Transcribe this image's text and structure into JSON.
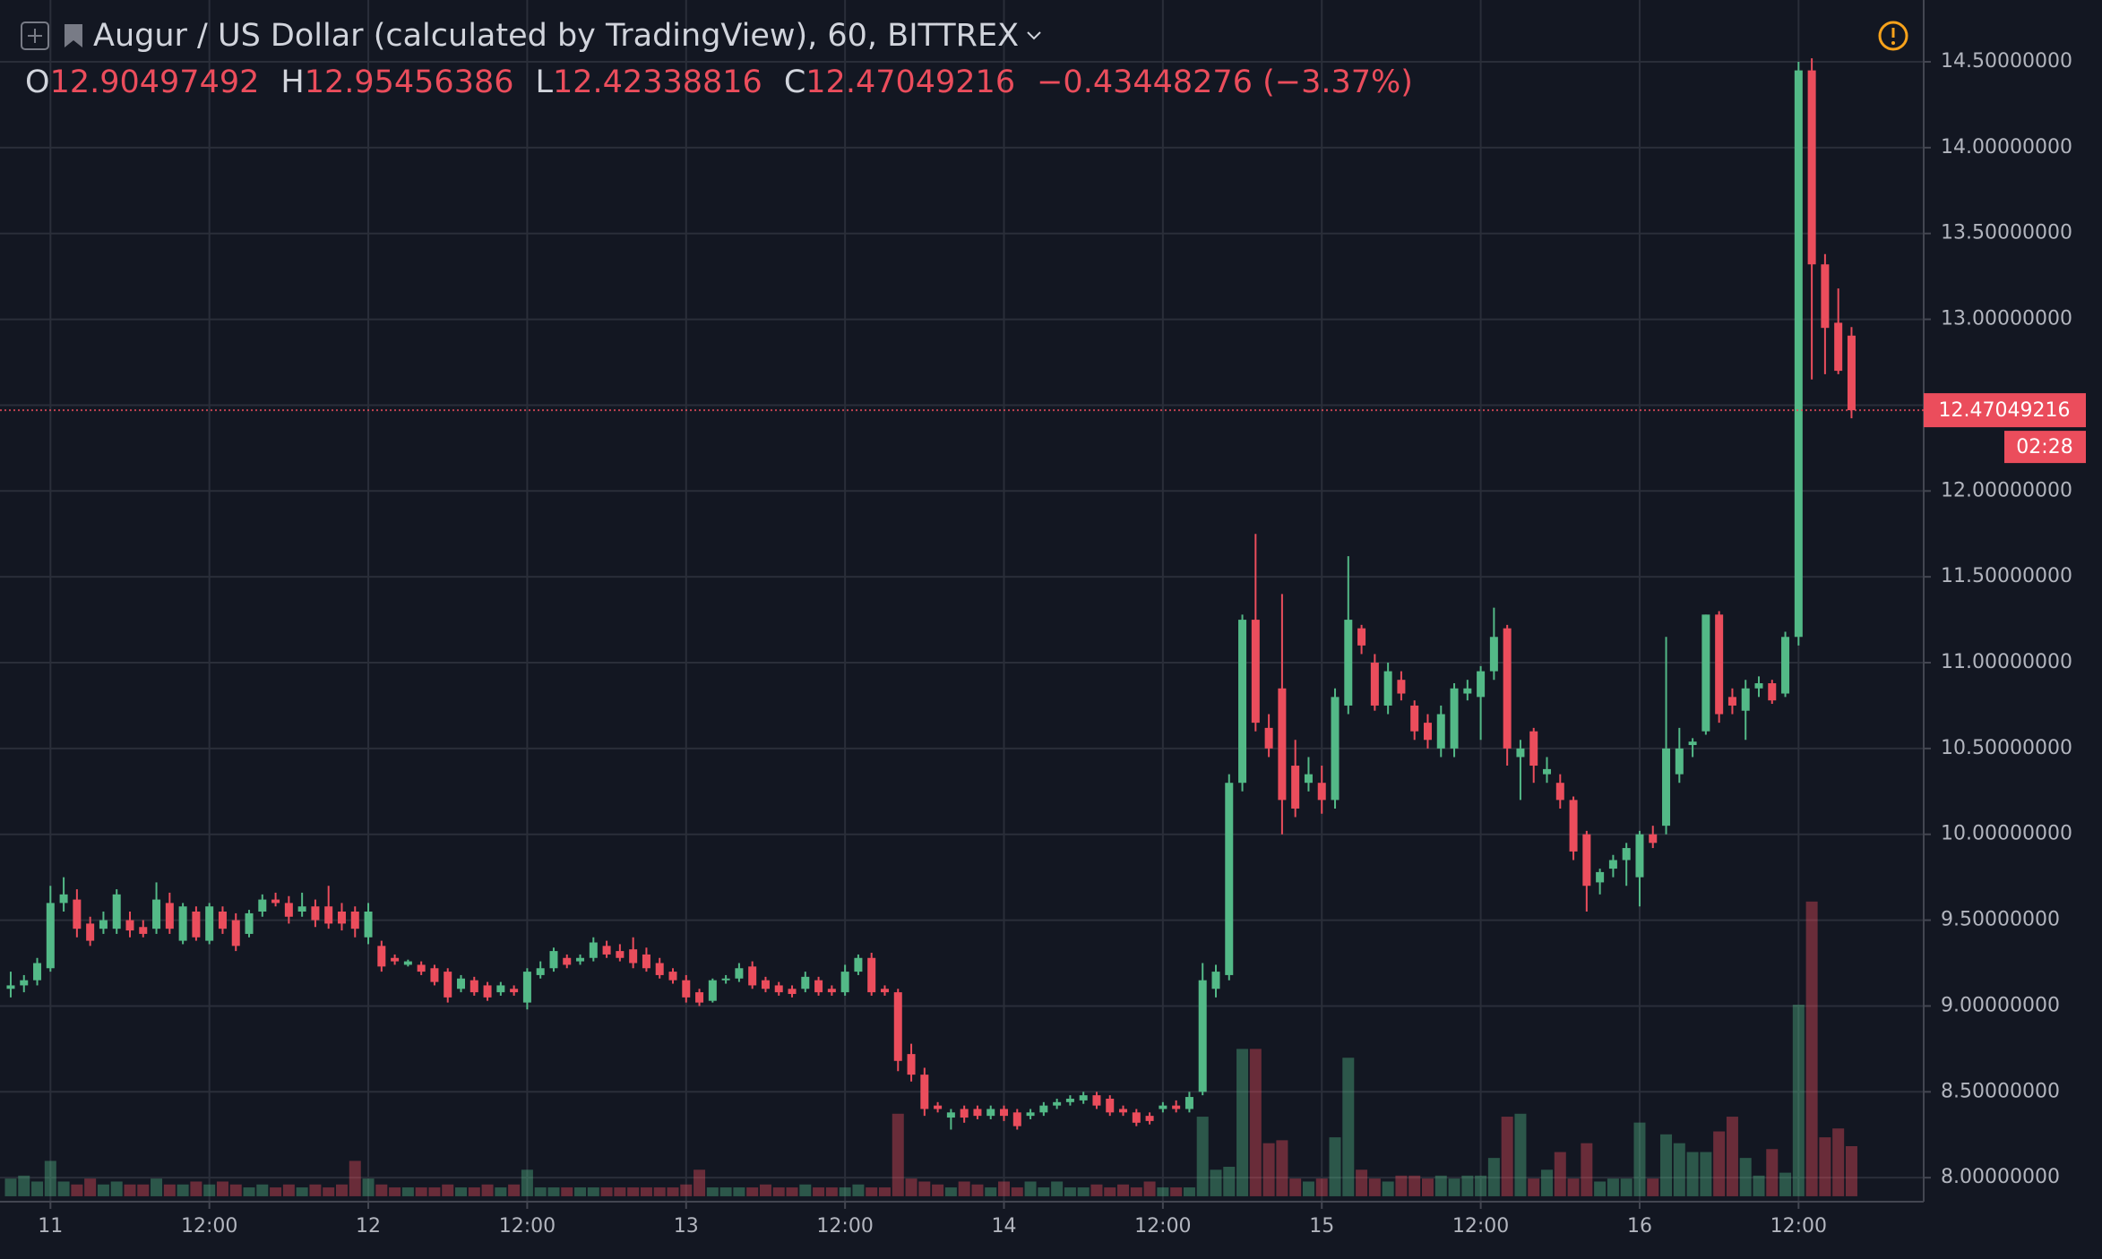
{
  "chart_data": {
    "type": "candlestick",
    "title": "Augur / US Dollar (calculated by TradingView), 60, BITTREX",
    "ohlc_labels": [
      "O",
      "H",
      "L",
      "C"
    ],
    "change": {
      "value": -0.43448276,
      "label": "−0.43448276 (−3.37%)"
    },
    "countdown": "02:28",
    "up_color": "#53b987",
    "down_color": "#eb4d5c",
    "grid": true,
    "categories": [
      null,
      null,
      null,
      "11",
      null,
      null,
      null,
      null,
      null,
      null,
      null,
      null,
      null,
      null,
      null,
      "12:00",
      null,
      null,
      null,
      null,
      null,
      null,
      null,
      null,
      null,
      null,
      null,
      "12",
      null,
      null,
      null,
      null,
      null,
      null,
      null,
      null,
      null,
      null,
      null,
      "12:00",
      null,
      null,
      null,
      null,
      null,
      null,
      null,
      null,
      null,
      null,
      null,
      "13",
      null,
      null,
      null,
      null,
      null,
      null,
      null,
      null,
      null,
      null,
      null,
      "12:00",
      null,
      null,
      null,
      null,
      null,
      null,
      null,
      null,
      null,
      null,
      null,
      "14",
      null,
      null,
      null,
      null,
      null,
      null,
      null,
      null,
      null,
      null,
      null,
      "12:00",
      null,
      null,
      null,
      null,
      null,
      null,
      null,
      null,
      null,
      null,
      null,
      "15",
      null,
      null,
      null,
      null,
      null,
      null,
      null,
      null,
      null,
      null,
      null,
      "12:00",
      null,
      null,
      null,
      null,
      null,
      null,
      null,
      null,
      null,
      null,
      null,
      "16",
      null,
      null,
      null,
      null,
      null,
      null,
      null,
      null,
      null,
      null,
      null,
      "12:00",
      null,
      null,
      null,
      null
    ],
    "ohlc": [
      [
        9.1,
        9.2,
        9.05,
        9.12
      ],
      [
        9.12,
        9.18,
        9.08,
        9.15
      ],
      [
        9.15,
        9.28,
        9.12,
        9.25
      ],
      [
        9.22,
        9.7,
        9.2,
        9.6
      ],
      [
        9.6,
        9.75,
        9.55,
        9.65
      ],
      [
        9.62,
        9.68,
        9.4,
        9.45
      ],
      [
        9.48,
        9.52,
        9.35,
        9.38
      ],
      [
        9.45,
        9.55,
        9.42,
        9.5
      ],
      [
        9.45,
        9.68,
        9.42,
        9.65
      ],
      [
        9.5,
        9.55,
        9.4,
        9.44
      ],
      [
        9.46,
        9.5,
        9.4,
        9.42
      ],
      [
        9.45,
        9.72,
        9.42,
        9.62
      ],
      [
        9.6,
        9.66,
        9.42,
        9.45
      ],
      [
        9.38,
        9.6,
        9.36,
        9.58
      ],
      [
        9.55,
        9.58,
        9.38,
        9.4
      ],
      [
        9.38,
        9.6,
        9.36,
        9.58
      ],
      [
        9.55,
        9.58,
        9.42,
        9.45
      ],
      [
        9.5,
        9.54,
        9.32,
        9.35
      ],
      [
        9.42,
        9.56,
        9.4,
        9.54
      ],
      [
        9.55,
        9.65,
        9.52,
        9.62
      ],
      [
        9.62,
        9.66,
        9.58,
        9.6
      ],
      [
        9.6,
        9.64,
        9.48,
        9.52
      ],
      [
        9.55,
        9.66,
        9.52,
        9.58
      ],
      [
        9.58,
        9.62,
        9.46,
        9.5
      ],
      [
        9.58,
        9.7,
        9.45,
        9.48
      ],
      [
        9.55,
        9.6,
        9.44,
        9.48
      ],
      [
        9.55,
        9.58,
        9.4,
        9.45
      ],
      [
        9.4,
        9.6,
        9.36,
        9.55
      ],
      [
        9.35,
        9.38,
        9.2,
        9.23
      ],
      [
        9.28,
        9.3,
        9.24,
        9.26
      ],
      [
        9.24,
        9.27,
        9.23,
        9.26
      ],
      [
        9.24,
        9.26,
        9.18,
        9.2
      ],
      [
        9.22,
        9.24,
        9.12,
        9.14
      ],
      [
        9.2,
        9.22,
        9.02,
        9.05
      ],
      [
        9.1,
        9.18,
        9.08,
        9.16
      ],
      [
        9.15,
        9.17,
        9.06,
        9.08
      ],
      [
        9.12,
        9.14,
        9.03,
        9.05
      ],
      [
        9.08,
        9.14,
        9.06,
        9.12
      ],
      [
        9.1,
        9.12,
        9.06,
        9.08
      ],
      [
        9.02,
        9.22,
        8.98,
        9.2
      ],
      [
        9.18,
        9.26,
        9.16,
        9.22
      ],
      [
        9.22,
        9.34,
        9.2,
        9.32
      ],
      [
        9.28,
        9.3,
        9.22,
        9.24
      ],
      [
        9.26,
        9.3,
        9.24,
        9.28
      ],
      [
        9.28,
        9.4,
        9.26,
        9.37
      ],
      [
        9.35,
        9.38,
        9.28,
        9.3
      ],
      [
        9.32,
        9.36,
        9.26,
        9.28
      ],
      [
        9.33,
        9.4,
        9.22,
        9.25
      ],
      [
        9.3,
        9.34,
        9.2,
        9.22
      ],
      [
        9.25,
        9.28,
        9.16,
        9.18
      ],
      [
        9.2,
        9.22,
        9.13,
        9.15
      ],
      [
        9.15,
        9.18,
        9.02,
        9.05
      ],
      [
        9.08,
        9.1,
        9.0,
        9.02
      ],
      [
        9.03,
        9.16,
        9.02,
        9.15
      ],
      [
        9.15,
        9.18,
        9.13,
        9.16
      ],
      [
        9.16,
        9.25,
        9.14,
        9.22
      ],
      [
        9.23,
        9.26,
        9.1,
        9.12
      ],
      [
        9.15,
        9.17,
        9.08,
        9.1
      ],
      [
        9.12,
        9.14,
        9.06,
        9.08
      ],
      [
        9.1,
        9.12,
        9.05,
        9.07
      ],
      [
        9.1,
        9.2,
        9.08,
        9.17
      ],
      [
        9.15,
        9.17,
        9.06,
        9.08
      ],
      [
        9.1,
        9.12,
        9.06,
        9.08
      ],
      [
        9.08,
        9.24,
        9.06,
        9.2
      ],
      [
        9.2,
        9.3,
        9.18,
        9.28
      ],
      [
        9.28,
        9.31,
        9.06,
        9.08
      ],
      [
        9.1,
        9.12,
        9.06,
        9.08
      ],
      [
        9.08,
        9.1,
        8.62,
        8.68
      ],
      [
        8.72,
        8.78,
        8.56,
        8.6
      ],
      [
        8.6,
        8.64,
        8.36,
        8.4
      ],
      [
        8.42,
        8.44,
        8.38,
        8.4
      ],
      [
        8.35,
        8.4,
        8.28,
        8.38
      ],
      [
        8.4,
        8.42,
        8.32,
        8.35
      ],
      [
        8.4,
        8.42,
        8.34,
        8.36
      ],
      [
        8.36,
        8.42,
        8.34,
        8.4
      ],
      [
        8.4,
        8.42,
        8.33,
        8.36
      ],
      [
        8.38,
        8.4,
        8.28,
        8.3
      ],
      [
        8.36,
        8.4,
        8.34,
        8.38
      ],
      [
        8.38,
        8.44,
        8.36,
        8.42
      ],
      [
        8.42,
        8.46,
        8.4,
        8.44
      ],
      [
        8.44,
        8.48,
        8.42,
        8.46
      ],
      [
        8.45,
        8.5,
        8.43,
        8.48
      ],
      [
        8.48,
        8.5,
        8.4,
        8.42
      ],
      [
        8.46,
        8.48,
        8.36,
        8.38
      ],
      [
        8.4,
        8.42,
        8.36,
        8.38
      ],
      [
        8.38,
        8.4,
        8.3,
        8.32
      ],
      [
        8.36,
        8.38,
        8.31,
        8.33
      ],
      [
        8.4,
        8.44,
        8.38,
        8.42
      ],
      [
        8.42,
        8.45,
        8.38,
        8.4
      ],
      [
        8.4,
        8.5,
        8.38,
        8.47
      ],
      [
        8.5,
        9.25,
        8.48,
        9.15
      ],
      [
        9.1,
        9.24,
        9.05,
        9.2
      ],
      [
        9.18,
        10.35,
        9.15,
        10.3
      ],
      [
        10.3,
        11.28,
        10.25,
        11.25
      ],
      [
        11.25,
        11.75,
        10.6,
        10.65
      ],
      [
        10.62,
        10.7,
        10.45,
        10.5
      ],
      [
        10.85,
        11.4,
        10.0,
        10.2
      ],
      [
        10.4,
        10.55,
        10.1,
        10.15
      ],
      [
        10.3,
        10.45,
        10.25,
        10.35
      ],
      [
        10.3,
        10.4,
        10.12,
        10.2
      ],
      [
        10.2,
        10.85,
        10.15,
        10.8
      ],
      [
        10.75,
        11.62,
        10.7,
        11.25
      ],
      [
        11.2,
        11.22,
        11.05,
        11.1
      ],
      [
        11.0,
        11.05,
        10.72,
        10.75
      ],
      [
        10.75,
        11.0,
        10.7,
        10.95
      ],
      [
        10.9,
        10.95,
        10.78,
        10.82
      ],
      [
        10.75,
        10.78,
        10.55,
        10.6
      ],
      [
        10.65,
        10.7,
        10.5,
        10.55
      ],
      [
        10.5,
        10.75,
        10.45,
        10.7
      ],
      [
        10.5,
        10.88,
        10.45,
        10.85
      ],
      [
        10.82,
        10.9,
        10.78,
        10.85
      ],
      [
        10.8,
        10.98,
        10.55,
        10.95
      ],
      [
        10.95,
        11.32,
        10.9,
        11.15
      ],
      [
        11.2,
        11.22,
        10.4,
        10.5
      ],
      [
        10.45,
        10.55,
        10.2,
        10.5
      ],
      [
        10.6,
        10.62,
        10.3,
        10.4
      ],
      [
        10.35,
        10.45,
        10.3,
        10.38
      ],
      [
        10.3,
        10.35,
        10.15,
        10.2
      ],
      [
        10.2,
        10.22,
        9.85,
        9.9
      ],
      [
        10.0,
        10.02,
        9.55,
        9.7
      ],
      [
        9.72,
        9.8,
        9.65,
        9.78
      ],
      [
        9.8,
        9.88,
        9.75,
        9.85
      ],
      [
        9.85,
        9.95,
        9.7,
        9.92
      ],
      [
        9.75,
        10.02,
        9.58,
        10.0
      ],
      [
        10.0,
        10.05,
        9.92,
        9.95
      ],
      [
        10.05,
        11.15,
        10.0,
        10.5
      ],
      [
        10.35,
        10.62,
        10.3,
        10.5
      ],
      [
        10.52,
        10.56,
        10.45,
        10.54
      ],
      [
        10.6,
        11.28,
        10.58,
        11.28
      ],
      [
        11.28,
        11.3,
        10.65,
        10.7
      ],
      [
        10.8,
        10.85,
        10.7,
        10.75
      ],
      [
        10.72,
        10.9,
        10.55,
        10.85
      ],
      [
        10.85,
        10.92,
        10.8,
        10.88
      ],
      [
        10.88,
        10.9,
        10.76,
        10.78
      ],
      [
        10.82,
        11.18,
        10.8,
        11.15
      ],
      [
        11.15,
        14.5,
        11.1,
        14.45
      ],
      [
        14.45,
        14.52,
        12.65,
        13.32
      ],
      [
        13.32,
        13.38,
        12.68,
        12.95
      ],
      [
        12.98,
        13.18,
        12.68,
        12.7
      ],
      [
        12.90497492,
        12.95456386,
        12.42338816,
        12.47049216
      ]
    ],
    "volume": [
      6,
      7,
      5,
      12,
      5,
      4,
      6,
      4,
      5,
      4,
      4,
      6,
      4,
      4,
      5,
      4,
      5,
      4,
      3,
      4,
      3,
      4,
      3,
      4,
      3,
      4,
      12,
      6,
      4,
      3,
      3,
      3,
      3,
      4,
      3,
      3,
      4,
      3,
      4,
      9,
      3,
      3,
      3,
      3,
      3,
      3,
      3,
      3,
      3,
      3,
      3,
      4,
      9,
      3,
      3,
      3,
      3,
      4,
      3,
      3,
      4,
      3,
      3,
      3,
      4,
      3,
      3,
      28,
      6,
      5,
      4,
      3,
      5,
      4,
      3,
      5,
      3,
      5,
      3,
      5,
      3,
      3,
      4,
      3,
      4,
      3,
      5,
      3,
      3,
      3,
      27,
      9,
      10,
      50,
      50,
      18,
      19,
      6,
      5,
      6,
      20,
      47,
      9,
      6,
      5,
      7,
      7,
      6,
      7,
      6,
      7,
      7,
      13,
      27,
      28,
      6,
      9,
      15,
      6,
      18,
      5,
      6,
      6,
      25,
      6,
      21,
      18,
      15,
      15,
      22,
      27,
      13,
      7,
      16,
      8,
      65,
      100,
      20,
      23,
      17
    ],
    "volume_ylim": [
      0,
      100
    ],
    "ylim": [
      7.86,
      14.86
    ],
    "yticks": [
      {
        "value": 8.0,
        "label": "8.00000000"
      },
      {
        "value": 8.5,
        "label": "8.50000000"
      },
      {
        "value": 9.0,
        "label": "9.00000000"
      },
      {
        "value": 9.5,
        "label": "9.50000000"
      },
      {
        "value": 10.0,
        "label": "10.00000000"
      },
      {
        "value": 10.5,
        "label": "10.50000000"
      },
      {
        "value": 11.0,
        "label": "11.00000000"
      },
      {
        "value": 11.5,
        "label": "11.50000000"
      },
      {
        "value": 12.0,
        "label": "12.00000000"
      },
      {
        "value": 12.5,
        "label": "12.50000000"
      },
      {
        "value": 13.0,
        "label": "13.00000000"
      },
      {
        "value": 13.5,
        "label": "13.50000000"
      },
      {
        "value": 14.0,
        "label": "14.00000000"
      },
      {
        "value": 14.5,
        "label": "14.50000000"
      }
    ]
  }
}
